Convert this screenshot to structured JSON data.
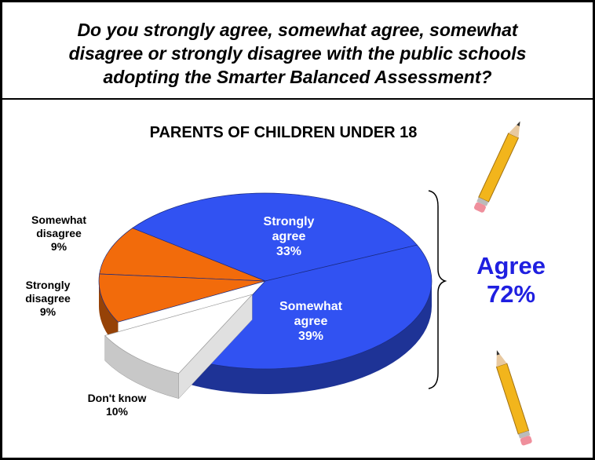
{
  "question": "Do you strongly agree, somewhat agree, somewhat disagree or strongly disagree with the public schools adopting the Smarter Balanced Assessment?",
  "chart_data": {
    "type": "pie",
    "title": "PARENTS OF CHILDREN UNDER 18",
    "categories": [
      "Strongly agree",
      "Somewhat agree",
      "Don't know",
      "Strongly disagree",
      "Somewhat disagree"
    ],
    "values": [
      33,
      39,
      10,
      9,
      9
    ],
    "value_labels": [
      "33%",
      "39%",
      "10%",
      "9%",
      "9%"
    ],
    "colors": [
      "#3152f2",
      "#3152f2",
      "#ffffff",
      "#f26b0b",
      "#f26b0b"
    ],
    "annotation": [
      "Agree",
      "72%"
    ]
  }
}
